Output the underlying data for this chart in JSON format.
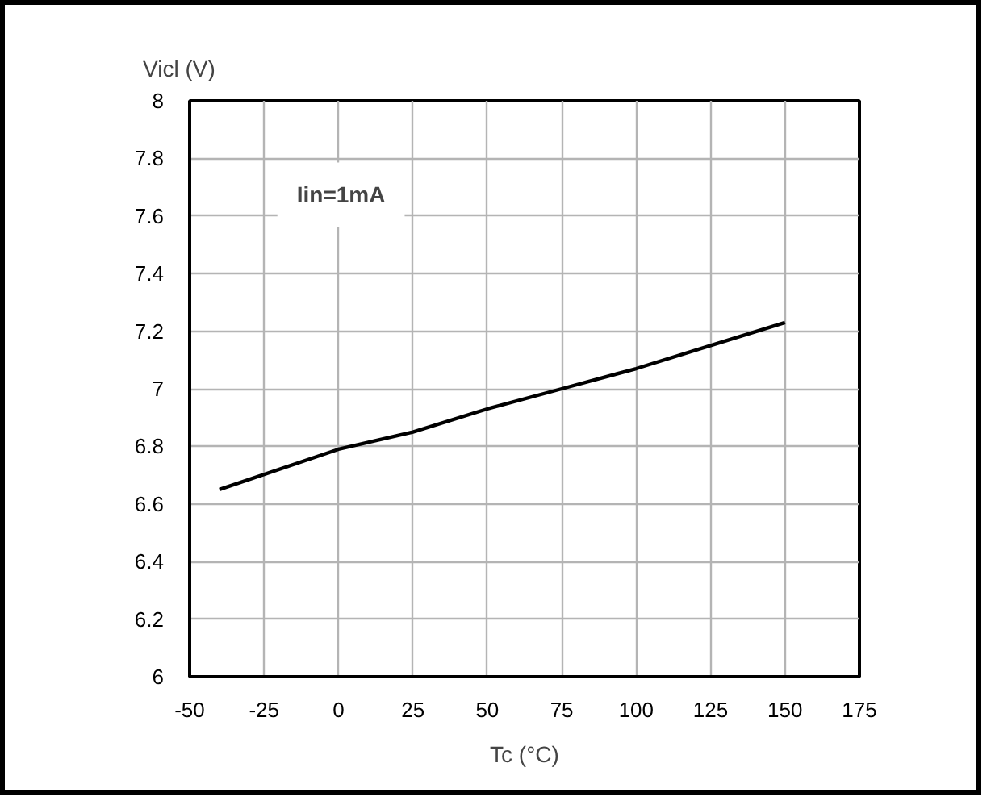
{
  "chart_data": {
    "type": "line",
    "xlabel": "Tc (°C)",
    "ylabel": "Vicl (V)",
    "x": [
      -40,
      0,
      25,
      50,
      75,
      100,
      125,
      150
    ],
    "series": [
      {
        "color": "#000000",
        "values": [
          6.65,
          6.79,
          6.85,
          6.93,
          7.0,
          7.07,
          7.15,
          7.23
        ]
      }
    ],
    "xlim": [
      -50,
      175
    ],
    "ylim": [
      6,
      8
    ],
    "xticks": [
      -50,
      -25,
      0,
      25,
      50,
      75,
      100,
      125,
      150,
      175
    ],
    "yticks": [
      6,
      6.2,
      6.4,
      6.6,
      6.8,
      7,
      7.2,
      7.4,
      7.6,
      7.8,
      8
    ],
    "grid": true,
    "marker": "none",
    "line_style": "solid",
    "annotations": [
      "Iin=1mA"
    ]
  }
}
